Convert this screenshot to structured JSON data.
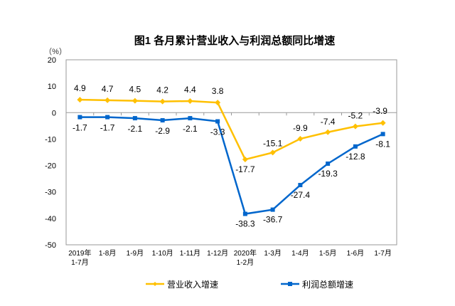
{
  "chart_data": {
    "type": "line",
    "title": "图1  各月累计营业收入与利润总额同比增速",
    "ylabel": "（%）",
    "ylim": [
      -50,
      20
    ],
    "yticks": [
      20,
      10,
      0,
      -10,
      -20,
      -30,
      -40,
      -50
    ],
    "categories": [
      [
        "2019年",
        "1-7月"
      ],
      [
        "1-8月"
      ],
      [
        "1-9月"
      ],
      [
        "1-10月"
      ],
      [
        "1-11月"
      ],
      [
        "1-12月"
      ],
      [
        "2020年",
        "1-2月"
      ],
      [
        "1-3月"
      ],
      [
        "1-4月"
      ],
      [
        "1-5月"
      ],
      [
        "1-6月"
      ],
      [
        "1-7月"
      ]
    ],
    "legend_position": "bottom",
    "grid": false,
    "series": [
      {
        "name": "营业收入增速",
        "color": "#FFC000",
        "marker": "diamond",
        "values": [
          4.9,
          4.7,
          4.5,
          4.2,
          4.4,
          3.8,
          -17.7,
          -15.1,
          -9.9,
          -7.4,
          -5.2,
          -3.9
        ]
      },
      {
        "name": "利润总额增速",
        "color": "#0066CC",
        "marker": "square",
        "values": [
          -1.7,
          -1.7,
          -2.1,
          -2.9,
          -2.1,
          -3.3,
          -38.3,
          -36.7,
          -27.4,
          -19.3,
          -12.8,
          -8.1
        ]
      }
    ]
  }
}
